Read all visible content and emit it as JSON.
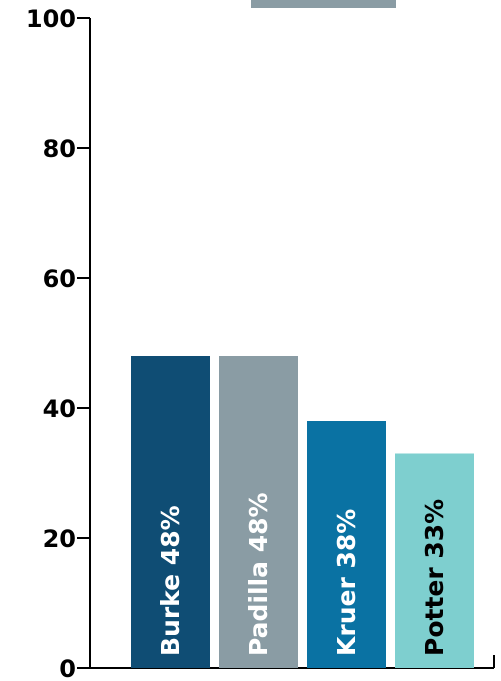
{
  "chart_data": {
    "type": "bar",
    "categories": [
      "Burke",
      "Padilla",
      "Kruer",
      "Potter"
    ],
    "values": [
      48,
      48,
      38,
      33
    ],
    "data_labels": [
      "Burke 48%",
      "Padilla 48%",
      "Kruer 38%",
      "Potter 33%"
    ],
    "colors": [
      "#0f4d74",
      "#8a9ca4",
      "#0a72a3",
      "#7ecfcf"
    ],
    "label_colors": [
      "#ffffff",
      "#ffffff",
      "#ffffff",
      "#000000"
    ],
    "y_ticks": [
      0,
      20,
      40,
      60,
      80,
      100
    ],
    "y_tick_labels": [
      "0",
      "20",
      "40",
      "60",
      "80",
      "100"
    ],
    "ylim": [
      0,
      100
    ],
    "title": "",
    "xlabel": "",
    "ylabel": "",
    "legend_marker_color": "#8a9ca4",
    "grid": false
  }
}
